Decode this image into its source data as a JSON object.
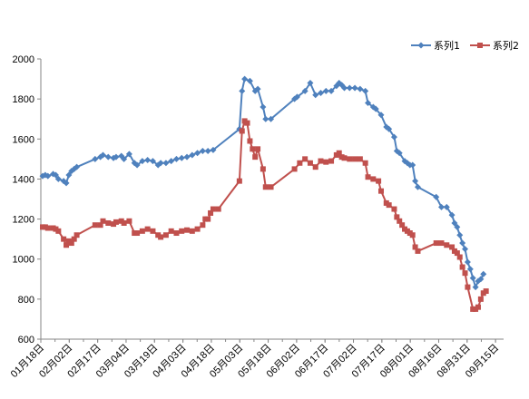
{
  "chart_data": {
    "type": "line",
    "title": "",
    "xlabel": "",
    "ylabel": "",
    "ylim": [
      600,
      2000
    ],
    "yticks": [
      600,
      800,
      1000,
      1200,
      1400,
      1600,
      1800,
      2000
    ],
    "grid": false,
    "legend": "top-right",
    "x_tick_labels": [
      "01月18日",
      "02月02日",
      "02月17日",
      "03月04日",
      "03月19日",
      "04月03日",
      "04月18日",
      "05月03日",
      "05月18日",
      "06月02日",
      "06月17日",
      "07月02日",
      "07月17日",
      "08月01日",
      "08月16日",
      "08月31日",
      "09月15日"
    ],
    "series": [
      {
        "name": "系列1",
        "color": "#4F81BD",
        "marker": "diamond",
        "points": [
          [
            0,
            1415
          ],
          [
            1,
            1420
          ],
          [
            2,
            1415
          ],
          [
            4,
            1425
          ],
          [
            5,
            1420
          ],
          [
            6,
            1400
          ],
          [
            8,
            1390
          ],
          [
            9,
            1380
          ],
          [
            10,
            1420
          ],
          [
            11,
            1440
          ],
          [
            12,
            1450
          ],
          [
            13,
            1460
          ],
          [
            20,
            1500
          ],
          [
            22,
            1510
          ],
          [
            23,
            1520
          ],
          [
            25,
            1510
          ],
          [
            27,
            1505
          ],
          [
            28,
            1510
          ],
          [
            30,
            1515
          ],
          [
            31,
            1500
          ],
          [
            33,
            1525
          ],
          [
            35,
            1480
          ],
          [
            36,
            1470
          ],
          [
            38,
            1490
          ],
          [
            40,
            1495
          ],
          [
            42,
            1490
          ],
          [
            44,
            1470
          ],
          [
            45,
            1480
          ],
          [
            47,
            1480
          ],
          [
            49,
            1490
          ],
          [
            51,
            1500
          ],
          [
            53,
            1505
          ],
          [
            55,
            1510
          ],
          [
            57,
            1520
          ],
          [
            59,
            1530
          ],
          [
            61,
            1540
          ],
          [
            63,
            1540
          ],
          [
            65,
            1545
          ],
          [
            75,
            1650
          ],
          [
            76,
            1840
          ],
          [
            77,
            1900
          ],
          [
            79,
            1890
          ],
          [
            81,
            1840
          ],
          [
            82,
            1850
          ],
          [
            84,
            1760
          ],
          [
            85,
            1700
          ],
          [
            87,
            1700
          ],
          [
            96,
            1800
          ],
          [
            97,
            1810
          ],
          [
            100,
            1840
          ],
          [
            102,
            1880
          ],
          [
            104,
            1820
          ],
          [
            106,
            1830
          ],
          [
            108,
            1840
          ],
          [
            110,
            1840
          ],
          [
            112,
            1865
          ],
          [
            113,
            1880
          ],
          [
            114,
            1870
          ],
          [
            115,
            1855
          ],
          [
            117,
            1855
          ],
          [
            119,
            1855
          ],
          [
            121,
            1850
          ],
          [
            123,
            1840
          ],
          [
            124,
            1780
          ],
          [
            126,
            1760
          ],
          [
            127,
            1750
          ],
          [
            129,
            1720
          ],
          [
            131,
            1660
          ],
          [
            132,
            1650
          ],
          [
            134,
            1610
          ],
          [
            135,
            1540
          ],
          [
            136,
            1530
          ],
          [
            138,
            1490
          ],
          [
            139,
            1480
          ],
          [
            140,
            1470
          ],
          [
            141,
            1470
          ],
          [
            142,
            1390
          ],
          [
            143,
            1360
          ],
          [
            150,
            1310
          ],
          [
            152,
            1260
          ],
          [
            154,
            1260
          ],
          [
            156,
            1220
          ],
          [
            157,
            1180
          ],
          [
            158,
            1160
          ],
          [
            159,
            1120
          ],
          [
            160,
            1080
          ],
          [
            161,
            1050
          ],
          [
            162,
            985
          ],
          [
            163,
            950
          ],
          [
            164,
            905
          ],
          [
            165,
            860
          ],
          [
            166,
            890
          ],
          [
            167,
            900
          ],
          [
            168,
            925
          ]
        ]
      },
      {
        "name": "系列2",
        "color": "#C0504D",
        "marker": "square",
        "points": [
          [
            0,
            1160
          ],
          [
            1,
            1160
          ],
          [
            2,
            1155
          ],
          [
            4,
            1155
          ],
          [
            5,
            1150
          ],
          [
            6,
            1140
          ],
          [
            8,
            1100
          ],
          [
            9,
            1070
          ],
          [
            10,
            1090
          ],
          [
            11,
            1080
          ],
          [
            12,
            1100
          ],
          [
            13,
            1120
          ],
          [
            20,
            1170
          ],
          [
            22,
            1170
          ],
          [
            23,
            1190
          ],
          [
            25,
            1180
          ],
          [
            27,
            1175
          ],
          [
            28,
            1185
          ],
          [
            30,
            1190
          ],
          [
            31,
            1180
          ],
          [
            33,
            1190
          ],
          [
            35,
            1130
          ],
          [
            36,
            1130
          ],
          [
            38,
            1140
          ],
          [
            40,
            1150
          ],
          [
            42,
            1140
          ],
          [
            44,
            1120
          ],
          [
            45,
            1110
          ],
          [
            47,
            1120
          ],
          [
            49,
            1140
          ],
          [
            51,
            1130
          ],
          [
            53,
            1140
          ],
          [
            55,
            1145
          ],
          [
            57,
            1140
          ],
          [
            59,
            1150
          ],
          [
            61,
            1170
          ],
          [
            62,
            1200
          ],
          [
            63,
            1200
          ],
          [
            64,
            1230
          ],
          [
            65,
            1250
          ],
          [
            67,
            1250
          ],
          [
            75,
            1390
          ],
          [
            76,
            1640
          ],
          [
            77,
            1690
          ],
          [
            78,
            1680
          ],
          [
            79,
            1590
          ],
          [
            80,
            1550
          ],
          [
            81,
            1510
          ],
          [
            82,
            1550
          ],
          [
            84,
            1450
          ],
          [
            85,
            1360
          ],
          [
            87,
            1360
          ],
          [
            96,
            1450
          ],
          [
            98,
            1480
          ],
          [
            100,
            1500
          ],
          [
            102,
            1480
          ],
          [
            104,
            1460
          ],
          [
            106,
            1490
          ],
          [
            108,
            1485
          ],
          [
            110,
            1490
          ],
          [
            112,
            1520
          ],
          [
            113,
            1530
          ],
          [
            114,
            1510
          ],
          [
            115,
            1505
          ],
          [
            117,
            1500
          ],
          [
            119,
            1500
          ],
          [
            121,
            1500
          ],
          [
            123,
            1480
          ],
          [
            124,
            1410
          ],
          [
            126,
            1400
          ],
          [
            128,
            1390
          ],
          [
            129,
            1340
          ],
          [
            131,
            1280
          ],
          [
            132,
            1270
          ],
          [
            134,
            1250
          ],
          [
            135,
            1210
          ],
          [
            136,
            1190
          ],
          [
            137,
            1170
          ],
          [
            138,
            1150
          ],
          [
            139,
            1140
          ],
          [
            140,
            1130
          ],
          [
            141,
            1120
          ],
          [
            142,
            1060
          ],
          [
            143,
            1040
          ],
          [
            150,
            1080
          ],
          [
            152,
            1080
          ],
          [
            154,
            1070
          ],
          [
            156,
            1060
          ],
          [
            157,
            1040
          ],
          [
            158,
            1030
          ],
          [
            159,
            1010
          ],
          [
            160,
            960
          ],
          [
            161,
            930
          ],
          [
            162,
            860
          ],
          [
            164,
            750
          ],
          [
            165,
            750
          ],
          [
            166,
            760
          ],
          [
            167,
            800
          ],
          [
            168,
            830
          ],
          [
            169,
            840
          ]
        ]
      }
    ]
  }
}
